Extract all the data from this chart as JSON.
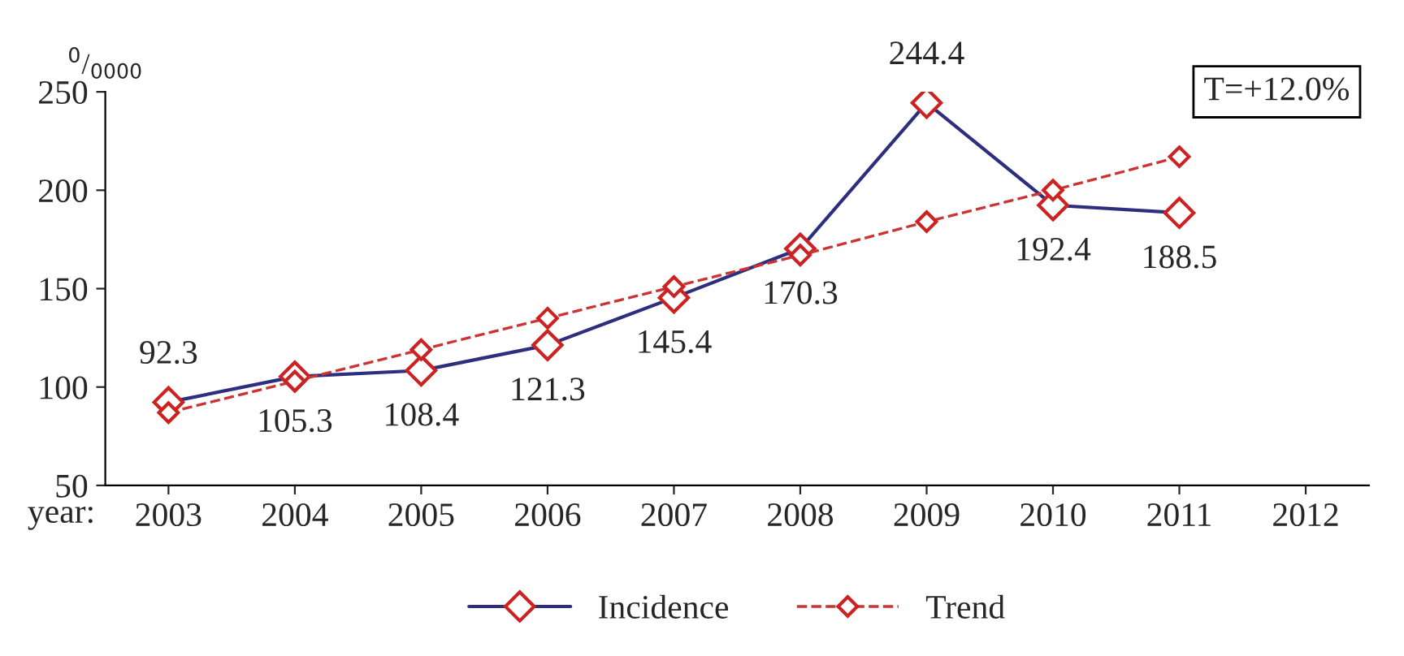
{
  "chart_data": {
    "type": "line",
    "categories": [
      "2003",
      "2004",
      "2005",
      "2006",
      "2007",
      "2008",
      "2009",
      "2010",
      "2011",
      "2012"
    ],
    "series": [
      {
        "name": "Incidence",
        "color": "#2e2e7e",
        "marker": "diamond",
        "line_style": "solid",
        "values": [
          92.3,
          105.3,
          108.4,
          121.3,
          145.4,
          170.3,
          244.4,
          192.4,
          188.5,
          null
        ],
        "value_labels": [
          "92.3",
          "105.3",
          "108.4",
          "121.3",
          "145.4",
          "170.3",
          "244.4",
          "192.4",
          "188.5",
          null
        ]
      },
      {
        "name": "Trend",
        "color": "#cc3333",
        "marker": "diamond",
        "line_style": "dashed",
        "values": [
          87,
          103,
          119,
          135,
          151,
          167,
          184,
          200,
          217,
          null
        ]
      }
    ],
    "xlabel": "year:",
    "ylabel": "$^{0}$/$_{0000}$",
    "ylim": [
      50,
      250
    ],
    "yticks": [
      50,
      100,
      150,
      200,
      250
    ],
    "annotations": [
      "T=+12.0%"
    ],
    "legend": "bottom",
    "grid": false
  }
}
